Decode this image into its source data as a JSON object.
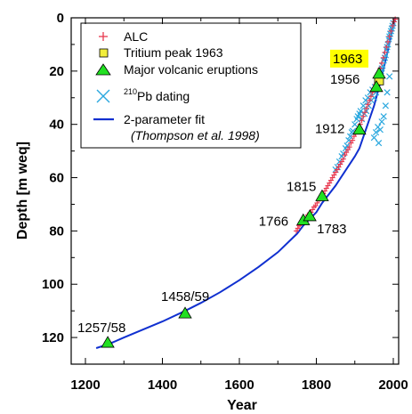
{
  "chart_data": {
    "type": "scatter",
    "xlabel": "Year",
    "ylabel": "Depth [m weq]",
    "xlim": [
      1200,
      2000
    ],
    "ylim": [
      0,
      130
    ],
    "y_reversed": true,
    "xticks": [
      1200,
      1400,
      1600,
      1800,
      2000
    ],
    "yticks": [
      0,
      20,
      40,
      60,
      80,
      100,
      120
    ],
    "legend_position": "top-left",
    "series": [
      {
        "name": "ALC",
        "marker": "plus",
        "color": "#e8384f",
        "x": [
          1748,
          1752,
          1755,
          1758,
          1762,
          1766,
          1770,
          1774,
          1778,
          1782,
          1786,
          1790,
          1794,
          1798,
          1802,
          1806,
          1810,
          1814,
          1818,
          1822,
          1826,
          1830,
          1834,
          1838,
          1842,
          1846,
          1850,
          1854,
          1858,
          1862,
          1866,
          1870,
          1874,
          1878,
          1882,
          1886,
          1890,
          1894,
          1898,
          1902,
          1906,
          1910,
          1914,
          1918,
          1922,
          1926,
          1930,
          1934,
          1938,
          1942,
          1946,
          1950,
          1954,
          1958,
          1962,
          1966,
          1970,
          1974,
          1978,
          1982,
          1986,
          1990,
          1994,
          1998,
          2002,
          2005
        ],
        "y": [
          80,
          79,
          78,
          77.5,
          77,
          76,
          75.5,
          75,
          74,
          73.5,
          73,
          72,
          71,
          70.5,
          69.5,
          68.5,
          68,
          67,
          66,
          65,
          64,
          63,
          62,
          61,
          60,
          59,
          58,
          57,
          56,
          55,
          54,
          53,
          51.5,
          50.5,
          49.5,
          48.5,
          47,
          46,
          44.5,
          43.5,
          42.5,
          41.5,
          40,
          38.5,
          37,
          35.5,
          34,
          32.5,
          31,
          29.5,
          28,
          26.5,
          25,
          23,
          21,
          19,
          17,
          15,
          13,
          11,
          9,
          7,
          5,
          3,
          1.5,
          0.5
        ]
      },
      {
        "name": "Tritium peak 1963",
        "marker": "square",
        "color": "#f2ee3c",
        "x": [
          1963
        ],
        "y": [
          23.5
        ]
      },
      {
        "name": "Major volcanic eruptions",
        "marker": "triangle",
        "color": "#22e022",
        "x": [
          1258,
          1459,
          1766,
          1783,
          1815,
          1912,
          1956,
          1963
        ],
        "y": [
          122,
          111,
          76,
          74.5,
          67,
          42,
          26,
          21
        ]
      },
      {
        "name": "<sup>210</sup>Pb dating",
        "marker": "x",
        "color": "#2ba8df",
        "x": [
          1850,
          1855,
          1860,
          1866,
          1870,
          1876,
          1880,
          1884,
          1888,
          1892,
          1895,
          1900,
          1905,
          1908,
          1912,
          1915,
          1918,
          1922,
          1925,
          1928,
          1930,
          1934,
          1936,
          1940,
          1943,
          1946,
          1950,
          1952,
          1955,
          1958,
          1960,
          1962,
          1964,
          1966,
          1968,
          1970,
          1972,
          1975,
          1978,
          1980,
          1982,
          1984,
          1986,
          1988,
          1990,
          1992,
          1994,
          1996,
          1998,
          2000,
          1950,
          1955,
          1960,
          1962,
          1966,
          1970,
          1975,
          1980,
          1984,
          1990
        ],
        "y": [
          57,
          56,
          54,
          52,
          51,
          49,
          48,
          46,
          44.5,
          43,
          42.5,
          40,
          38,
          37,
          36,
          35,
          38,
          33,
          36,
          31,
          35,
          30,
          33,
          28,
          31,
          27,
          30,
          26,
          28,
          25,
          24,
          22,
          23,
          21,
          20,
          19,
          18,
          16,
          15,
          14,
          12,
          11,
          10,
          8,
          7,
          6,
          5,
          4,
          3,
          2,
          45,
          43,
          41,
          47,
          42,
          39,
          37,
          33,
          28,
          22
        ]
      },
      {
        "name": "2-parameter fit",
        "marker": "line",
        "color": "#1030d0",
        "x": [
          1228,
          1260,
          1300,
          1350,
          1400,
          1459,
          1500,
          1550,
          1600,
          1650,
          1700,
          1750,
          1766,
          1783,
          1800,
          1815,
          1850,
          1900,
          1912,
          1950,
          1963,
          1980,
          2000,
          2005
        ],
        "y": [
          124,
          122.5,
          120,
          117,
          114,
          110,
          107,
          103,
          98.5,
          93.5,
          88,
          81,
          78,
          75.5,
          73,
          69.5,
          63,
          52,
          49,
          33,
          26,
          16,
          3,
          0
        ]
      }
    ],
    "annotations": [
      {
        "text": "1257/58",
        "x": 1258,
        "y": 122
      },
      {
        "text": "1458/59",
        "x": 1459,
        "y": 111
      },
      {
        "text": "1766",
        "x": 1766,
        "y": 76
      },
      {
        "text": "1783",
        "x": 1783,
        "y": 74.5
      },
      {
        "text": "1815",
        "x": 1815,
        "y": 67
      },
      {
        "text": "1912",
        "x": 1912,
        "y": 42
      },
      {
        "text": "1956",
        "x": 1956,
        "y": 26
      },
      {
        "text": "1963",
        "x": 1963,
        "y": 21,
        "highlight": "#ffff00"
      }
    ],
    "legend": {
      "entries": [
        "ALC",
        "Tritium peak 1963",
        "Major volcanic eruptions",
        "210Pb dating",
        "2-parameter fit"
      ],
      "fit_citation": "(Thompson et al. 1998)"
    }
  }
}
